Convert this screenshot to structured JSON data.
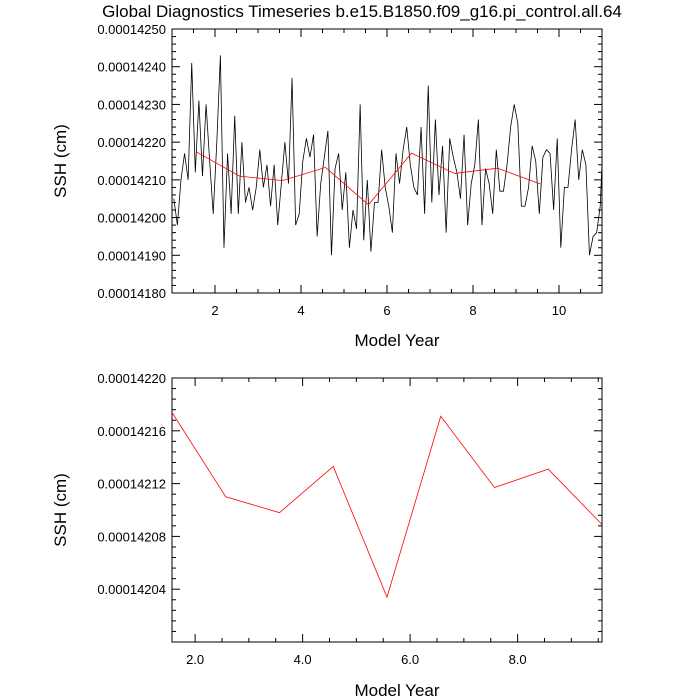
{
  "title": "Global Diagnostics Timeseries b.e15.B1850.f09_g16.pi_control.all.64",
  "colors": {
    "monthly_line": "#000000",
    "annual_line": "#ff0000",
    "frame": "#000000"
  },
  "chart_data": [
    {
      "type": "line",
      "xlabel": "Model Year",
      "ylabel": "SSH (cm)",
      "xlim": [
        1.0,
        11.0
      ],
      "ylim": [
        0.0001418,
        0.0001425
      ],
      "x_ticks": [
        "2",
        "4",
        "6",
        "8",
        "10"
      ],
      "y_ticks": [
        "0.00014180",
        "0.00014190",
        "0.00014200",
        "0.00014210",
        "0.00014220",
        "0.00014230",
        "0.00014240",
        "0.00014250"
      ],
      "grid": false,
      "series": [
        {
          "color": "#000000",
          "x_start": 1.042,
          "x_step": 0.0833333,
          "values": [
            0.00014205,
            0.00014198,
            0.0001421,
            0.00014217,
            0.0001421,
            0.00014241,
            0.00014212,
            0.00014231,
            0.00014211,
            0.0001423,
            0.00014215,
            0.00014201,
            0.0001422,
            0.00014243,
            0.00014192,
            0.00014217,
            0.00014201,
            0.00014227,
            0.00014201,
            0.0001422,
            0.00014204,
            0.00014208,
            0.00014202,
            0.00014208,
            0.00014218,
            0.00014208,
            0.00014214,
            0.00014203,
            0.00014214,
            0.00014198,
            0.00014209,
            0.0001422,
            0.00014209,
            0.00014237,
            0.00014198,
            0.00014201,
            0.00014215,
            0.00014221,
            0.00014216,
            0.00014222,
            0.00014195,
            0.00014209,
            0.00014216,
            0.00014223,
            0.0001419,
            0.00014213,
            0.00014217,
            0.00014202,
            0.00014212,
            0.00014192,
            0.00014202,
            0.00014197,
            0.0001423,
            0.00014194,
            0.0001421,
            0.00014191,
            0.00014204,
            0.00014204,
            0.00014218,
            0.00014208,
            0.00014203,
            0.00014196,
            0.00014217,
            0.00014209,
            0.00014218,
            0.00014224,
            0.00014214,
            0.00014208,
            0.00014206,
            0.00014224,
            0.00014201,
            0.00014235,
            0.00014204,
            0.00014226,
            0.00014206,
            0.00014219,
            0.00014196,
            0.00014221,
            0.00014216,
            0.00014212,
            0.00014205,
            0.00014222,
            0.00014198,
            0.00014209,
            0.00014214,
            0.00014226,
            0.00014198,
            0.00014213,
            0.00014209,
            0.00014201,
            0.00014218,
            0.00014207,
            0.00014207,
            0.00014214,
            0.00014224,
            0.0001423,
            0.00014225,
            0.00014203,
            0.00014203,
            0.00014208,
            0.00014219,
            0.00014215,
            0.00014201,
            0.00014216,
            0.00014218,
            0.00014217,
            0.00014202,
            0.00014221,
            0.00014192,
            0.00014208,
            0.00014208,
            0.00014218,
            0.00014226,
            0.0001421,
            0.00014218,
            0.00014214,
            0.0001419,
            0.00014195,
            0.00014196,
            0.00014203,
            0.00014226,
            0.00014223,
            0.00014192,
            0.00014196
          ]
        },
        {
          "color": "#ff0000",
          "x": [
            1.57,
            2.57,
            3.57,
            4.57,
            5.57,
            6.57,
            7.57,
            8.57,
            9.57
          ],
          "values": [
            0.000142174,
            0.00014211,
            0.000142098,
            0.000142133,
            0.000142034,
            0.000142171,
            0.000142117,
            0.000142131,
            0.000142089
          ]
        }
      ]
    },
    {
      "type": "line",
      "xlabel": "Model Year",
      "ylabel": "SSH (cm)",
      "xlim": [
        1.57,
        9.57
      ],
      "ylim": [
        0.000142,
        0.0001422
      ],
      "x_ticks": [
        "2.0",
        "4.0",
        "6.0",
        "8.0"
      ],
      "y_ticks": [
        "0.00014204",
        "0.00014208",
        "0.00014212",
        "0.00014216",
        "0.00014220"
      ],
      "grid": false,
      "series": [
        {
          "color": "#ff0000",
          "x": [
            1.57,
            2.57,
            3.57,
            4.57,
            5.57,
            6.57,
            7.57,
            8.57,
            9.57
          ],
          "values": [
            0.000142174,
            0.00014211,
            0.000142098,
            0.000142133,
            0.000142034,
            0.000142171,
            0.000142117,
            0.000142131,
            0.000142089
          ]
        }
      ]
    }
  ]
}
